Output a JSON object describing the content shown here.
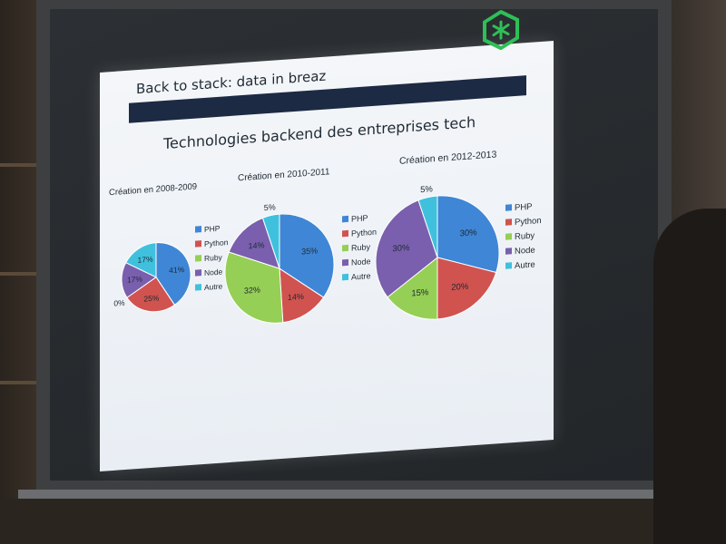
{
  "slide": {
    "title": "Back to stack: data in breaz",
    "heading": "Technologies backend des entreprises tech",
    "logo_icon": "asterisk-hexagon-icon",
    "colors": {
      "banner": "#1d2a44",
      "logo": "#2fbf56"
    }
  },
  "chart_data": [
    {
      "type": "pie",
      "title": "Création en 2008-2009",
      "categories": [
        "PHP",
        "Python",
        "Ruby",
        "Node",
        "Autre"
      ],
      "values": [
        41,
        25,
        0,
        17,
        17
      ],
      "labels": [
        "41%",
        "25%",
        "0%",
        "17%",
        "17%"
      ],
      "colors": [
        "#3f86d6",
        "#d0534f",
        "#96cf55",
        "#7a5fae",
        "#3fc1de"
      ],
      "legend": "right"
    },
    {
      "type": "pie",
      "title": "Création en 2010-2011",
      "categories": [
        "PHP",
        "Python",
        "Ruby",
        "Node",
        "Autre"
      ],
      "values": [
        35,
        14,
        32,
        14,
        5
      ],
      "labels": [
        "35%",
        "14%",
        "32%",
        "14%",
        "5%"
      ],
      "colors": [
        "#3f86d6",
        "#d0534f",
        "#96cf55",
        "#7a5fae",
        "#3fc1de"
      ],
      "legend": "right"
    },
    {
      "type": "pie",
      "title": "Création en 2012-2013",
      "categories": [
        "PHP",
        "Python",
        "Ruby",
        "Node",
        "Autre"
      ],
      "values": [
        30,
        20,
        15,
        30,
        5
      ],
      "labels": [
        "30%",
        "20%",
        "15%",
        "30%",
        "5%"
      ],
      "colors": [
        "#3f86d6",
        "#d0534f",
        "#96cf55",
        "#7a5fae",
        "#3fc1de"
      ],
      "legend": "right"
    }
  ]
}
